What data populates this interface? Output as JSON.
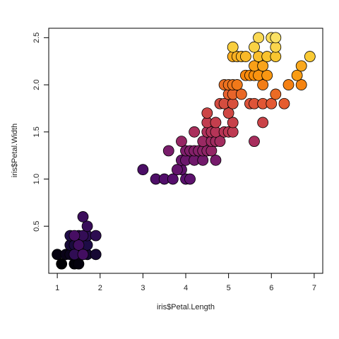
{
  "chart_data": {
    "type": "scatter",
    "title": "",
    "xlabel": "iris$Petal.Length",
    "ylabel": "iris$Petal.Width",
    "xlim": [
      0.8,
      7.2
    ],
    "ylim": [
      0.0,
      2.6
    ],
    "xticks": [
      1,
      2,
      3,
      4,
      5,
      6,
      7
    ],
    "yticks": [
      0.5,
      1.0,
      1.5,
      2.0,
      2.5
    ],
    "ytick_labels": [
      "0.5",
      "1.0",
      "1.5",
      "2.0",
      "2.5"
    ],
    "grid": false,
    "legend": "none",
    "point_style": "filled circle, black outline",
    "color_scale": "inferno (dark to yellow by row order)",
    "points": [
      {
        "x": 1.1,
        "y": 0.1
      },
      {
        "x": 1.4,
        "y": 0.1
      },
      {
        "x": 1.5,
        "y": 0.1
      },
      {
        "x": 1.0,
        "y": 0.2
      },
      {
        "x": 1.2,
        "y": 0.2
      },
      {
        "x": 1.3,
        "y": 0.2
      },
      {
        "x": 1.4,
        "y": 0.2
      },
      {
        "x": 1.5,
        "y": 0.2
      },
      {
        "x": 1.6,
        "y": 0.2
      },
      {
        "x": 1.7,
        "y": 0.2
      },
      {
        "x": 1.9,
        "y": 0.2
      },
      {
        "x": 1.3,
        "y": 0.3
      },
      {
        "x": 1.4,
        "y": 0.3
      },
      {
        "x": 1.5,
        "y": 0.3
      },
      {
        "x": 1.7,
        "y": 0.3
      },
      {
        "x": 1.3,
        "y": 0.4
      },
      {
        "x": 1.5,
        "y": 0.4
      },
      {
        "x": 1.7,
        "y": 0.4
      },
      {
        "x": 1.9,
        "y": 0.4
      },
      {
        "x": 1.4,
        "y": 0.2
      },
      {
        "x": 1.6,
        "y": 0.4
      },
      {
        "x": 1.7,
        "y": 0.5
      },
      {
        "x": 1.6,
        "y": 0.6
      },
      {
        "x": 1.5,
        "y": 0.3
      },
      {
        "x": 1.6,
        "y": 0.2
      },
      {
        "x": 1.4,
        "y": 0.4
      },
      {
        "x": 3.0,
        "y": 1.1
      },
      {
        "x": 3.3,
        "y": 1.0
      },
      {
        "x": 3.5,
        "y": 1.0
      },
      {
        "x": 3.7,
        "y": 1.0
      },
      {
        "x": 4.0,
        "y": 1.0
      },
      {
        "x": 4.1,
        "y": 1.0
      },
      {
        "x": 3.9,
        "y": 1.1
      },
      {
        "x": 3.8,
        "y": 1.1
      },
      {
        "x": 3.9,
        "y": 1.2
      },
      {
        "x": 4.0,
        "y": 1.2
      },
      {
        "x": 4.2,
        "y": 1.2
      },
      {
        "x": 4.4,
        "y": 1.2
      },
      {
        "x": 4.7,
        "y": 1.2
      },
      {
        "x": 3.6,
        "y": 1.3
      },
      {
        "x": 4.0,
        "y": 1.3
      },
      {
        "x": 4.1,
        "y": 1.3
      },
      {
        "x": 4.2,
        "y": 1.3
      },
      {
        "x": 4.3,
        "y": 1.3
      },
      {
        "x": 4.4,
        "y": 1.3
      },
      {
        "x": 4.5,
        "y": 1.3
      },
      {
        "x": 4.6,
        "y": 1.3
      },
      {
        "x": 3.9,
        "y": 1.4
      },
      {
        "x": 4.4,
        "y": 1.4
      },
      {
        "x": 4.6,
        "y": 1.4
      },
      {
        "x": 4.7,
        "y": 1.4
      },
      {
        "x": 4.8,
        "y": 1.4
      },
      {
        "x": 5.6,
        "y": 1.4
      },
      {
        "x": 4.2,
        "y": 1.5
      },
      {
        "x": 4.5,
        "y": 1.5
      },
      {
        "x": 4.6,
        "y": 1.5
      },
      {
        "x": 4.7,
        "y": 1.5
      },
      {
        "x": 4.9,
        "y": 1.5
      },
      {
        "x": 5.0,
        "y": 1.5
      },
      {
        "x": 5.1,
        "y": 1.5
      },
      {
        "x": 4.5,
        "y": 1.6
      },
      {
        "x": 4.7,
        "y": 1.6
      },
      {
        "x": 5.1,
        "y": 1.6
      },
      {
        "x": 5.8,
        "y": 1.6
      },
      {
        "x": 4.5,
        "y": 1.7
      },
      {
        "x": 5.0,
        "y": 1.7
      },
      {
        "x": 4.8,
        "y": 1.8
      },
      {
        "x": 4.9,
        "y": 1.8
      },
      {
        "x": 5.1,
        "y": 1.8
      },
      {
        "x": 5.5,
        "y": 1.8
      },
      {
        "x": 5.6,
        "y": 1.8
      },
      {
        "x": 5.8,
        "y": 1.8
      },
      {
        "x": 6.0,
        "y": 1.8
      },
      {
        "x": 6.3,
        "y": 1.8
      },
      {
        "x": 5.0,
        "y": 1.9
      },
      {
        "x": 5.1,
        "y": 1.9
      },
      {
        "x": 5.3,
        "y": 1.9
      },
      {
        "x": 6.1,
        "y": 1.9
      },
      {
        "x": 4.9,
        "y": 2.0
      },
      {
        "x": 5.0,
        "y": 2.0
      },
      {
        "x": 5.1,
        "y": 2.0
      },
      {
        "x": 5.2,
        "y": 2.0
      },
      {
        "x": 5.8,
        "y": 2.0
      },
      {
        "x": 6.4,
        "y": 2.0
      },
      {
        "x": 6.7,
        "y": 2.0
      },
      {
        "x": 5.4,
        "y": 2.1
      },
      {
        "x": 5.5,
        "y": 2.1
      },
      {
        "x": 5.6,
        "y": 2.1
      },
      {
        "x": 5.7,
        "y": 2.1
      },
      {
        "x": 5.9,
        "y": 2.1
      },
      {
        "x": 6.6,
        "y": 2.1
      },
      {
        "x": 5.6,
        "y": 2.2
      },
      {
        "x": 5.8,
        "y": 2.2
      },
      {
        "x": 6.7,
        "y": 2.2
      },
      {
        "x": 5.1,
        "y": 2.3
      },
      {
        "x": 5.2,
        "y": 2.3
      },
      {
        "x": 5.3,
        "y": 2.3
      },
      {
        "x": 5.4,
        "y": 2.3
      },
      {
        "x": 5.7,
        "y": 2.3
      },
      {
        "x": 5.9,
        "y": 2.3
      },
      {
        "x": 6.1,
        "y": 2.3
      },
      {
        "x": 6.9,
        "y": 2.3
      },
      {
        "x": 5.1,
        "y": 2.4
      },
      {
        "x": 5.6,
        "y": 2.4
      },
      {
        "x": 6.1,
        "y": 2.4
      },
      {
        "x": 5.7,
        "y": 2.5
      },
      {
        "x": 6.0,
        "y": 2.5
      },
      {
        "x": 6.1,
        "y": 2.5
      }
    ]
  }
}
